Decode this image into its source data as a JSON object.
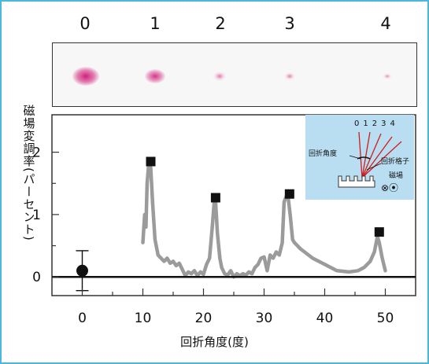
{
  "diffraction_orders": [
    "0",
    "1",
    "2",
    "3",
    "4"
  ],
  "inset": {
    "orders": [
      "0",
      "1",
      "2",
      "3",
      "4"
    ],
    "angle_label": "回折角度",
    "grating_label": "回折格子",
    "field_label": "磁場",
    "field_symbols": "⊗⦿"
  },
  "chart_data": {
    "type": "line",
    "xlabel": "回折角度(度)",
    "ylabel": "磁場変調率(パーセント)",
    "xlim": [
      -5,
      55
    ],
    "ylim": [
      -0.3,
      2.6
    ],
    "xticks": [
      "0",
      "10",
      "20",
      "30",
      "40",
      "50"
    ],
    "yticks": [
      "0",
      "1",
      "2"
    ],
    "colors": {
      "curve": "#9b9b9b",
      "marker": "#111111",
      "spot": "#d2217a"
    },
    "series": [
      {
        "type": "line",
        "x": [
          10,
          10.3,
          10.5,
          10.7,
          11,
          11.3,
          11.6,
          12,
          12.5,
          13,
          13.5,
          14,
          14.5,
          15,
          15.5,
          16,
          16.5,
          17,
          17.5,
          18,
          18.5,
          19,
          19.5,
          20,
          20.5,
          21,
          21.5,
          21.8,
          22,
          22.3,
          22.7,
          23,
          23.5,
          24,
          24.5,
          25,
          25.5,
          26,
          26.5,
          27,
          27.5,
          28,
          28.5,
          29,
          29.5,
          30,
          30.5,
          31,
          31.5,
          32,
          32.5,
          33,
          33.3,
          33.7,
          34,
          34.3,
          34.7,
          35,
          35.5,
          36,
          38,
          40,
          42,
          44,
          45.5,
          46.5,
          47.5,
          48.2,
          48.7,
          49,
          49.5,
          50
        ],
        "y": [
          0.55,
          1.0,
          0.8,
          1.5,
          1.85,
          1.75,
          1.2,
          0.6,
          0.35,
          0.3,
          0.25,
          0.3,
          0.22,
          0.25,
          0.18,
          0.22,
          0.12,
          0.02,
          0.08,
          0.05,
          0.1,
          0.02,
          0.08,
          0.04,
          0.2,
          0.3,
          0.85,
          1.25,
          1.2,
          0.7,
          0.3,
          0.15,
          0.05,
          0.03,
          0.1,
          0.0,
          0.05,
          0.02,
          0.05,
          0.03,
          0.08,
          0.05,
          0.15,
          0.2,
          0.3,
          0.32,
          0.1,
          0.35,
          0.3,
          0.4,
          0.35,
          0.55,
          1.2,
          1.3,
          1.25,
          1.0,
          0.6,
          0.55,
          0.5,
          0.45,
          0.3,
          0.2,
          0.1,
          0.08,
          0.1,
          0.15,
          0.25,
          0.4,
          0.65,
          0.55,
          0.3,
          0.1
        ]
      },
      {
        "type": "markers",
        "x": [
          11.3,
          22,
          34.2,
          49
        ],
        "y": [
          1.85,
          1.27,
          1.33,
          0.72
        ]
      },
      {
        "type": "point",
        "x": [
          0
        ],
        "y": [
          0.1
        ],
        "error": [
          0.32
        ]
      }
    ],
    "spots": [
      {
        "order": "0",
        "intensity": 1.0
      },
      {
        "order": "1",
        "intensity": 0.85
      },
      {
        "order": "2",
        "intensity": 0.35
      },
      {
        "order": "3",
        "intensity": 0.3
      },
      {
        "order": "4",
        "intensity": 0.2
      }
    ]
  }
}
